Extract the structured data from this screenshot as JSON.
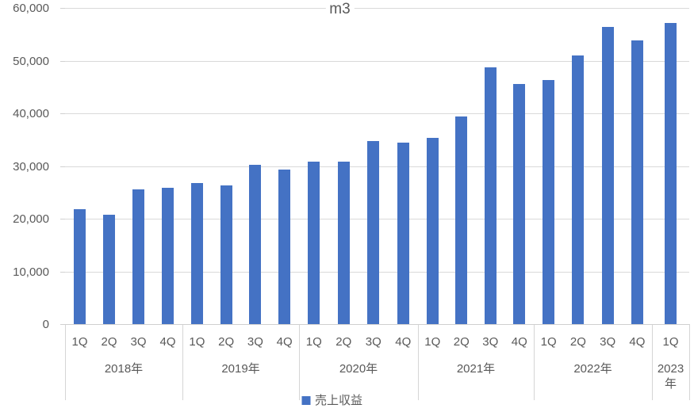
{
  "chart_data": {
    "type": "bar",
    "title": "m3",
    "legend_label": "売上収益",
    "legend_position": "bottom",
    "grid": true,
    "xlabel": "",
    "ylabel": "",
    "ylim": [
      0,
      60000
    ],
    "y_tick_step": 10000,
    "y_tick_labels": [
      "0",
      "10,000",
      "20,000",
      "30,000",
      "40,000",
      "50,000",
      "60,000"
    ],
    "bar_color": "#4472C4",
    "grid_color": "#D9D9D9",
    "text_color": "#595959",
    "groups": [
      {
        "label": "2018年",
        "quarters": [
          "1Q",
          "2Q",
          "3Q",
          "4Q"
        ],
        "values": [
          21800,
          20800,
          25600,
          25800
        ]
      },
      {
        "label": "2019年",
        "quarters": [
          "1Q",
          "2Q",
          "3Q",
          "4Q"
        ],
        "values": [
          26700,
          26300,
          30300,
          29300
        ]
      },
      {
        "label": "2020年",
        "quarters": [
          "1Q",
          "2Q",
          "3Q",
          "4Q"
        ],
        "values": [
          30800,
          30800,
          34700,
          34500
        ]
      },
      {
        "label": "2021年",
        "quarters": [
          "1Q",
          "2Q",
          "3Q",
          "4Q"
        ],
        "values": [
          35300,
          39400,
          48700,
          45500
        ]
      },
      {
        "label": "2022年",
        "quarters": [
          "1Q",
          "2Q",
          "3Q",
          "4Q"
        ],
        "values": [
          46300,
          51000,
          56400,
          53800
        ]
      },
      {
        "label": "2023年",
        "quarters": [
          "1Q"
        ],
        "values": [
          57100
        ]
      }
    ]
  }
}
